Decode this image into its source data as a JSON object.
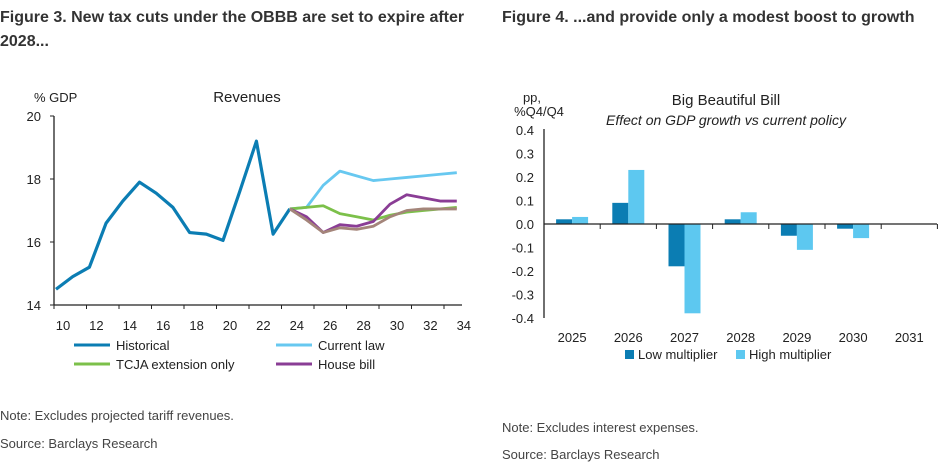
{
  "left": {
    "title": "Figure 3. New tax cuts under the OBBB are set to expire after 2028...",
    "note": "Note: Excludes projected tariff revenues.",
    "source": "Source: Barclays Research"
  },
  "right": {
    "title": "Figure 4. ...and provide only a modest boost to growth",
    "note": "Note: Excludes interest expenses.",
    "source": "Source: Barclays Research"
  },
  "chart_data": [
    {
      "type": "line",
      "title": "Revenues",
      "ylabel": "% GDP",
      "ylim": [
        14,
        20
      ],
      "yticks": [
        "14",
        "16",
        "18",
        "20"
      ],
      "xticks": [
        "10",
        "12",
        "14",
        "16",
        "18",
        "20",
        "22",
        "24",
        "26",
        "28",
        "30",
        "32",
        "34"
      ],
      "series": [
        {
          "name": "Historical",
          "color": "#0b7db3",
          "x": [
            10,
            11,
            12,
            13,
            14,
            15,
            16,
            17,
            18,
            19,
            20,
            21,
            22,
            23,
            24
          ],
          "values": [
            14.5,
            14.9,
            15.2,
            16.6,
            17.3,
            17.9,
            17.55,
            17.1,
            16.3,
            16.25,
            16.05,
            17.6,
            19.2,
            16.25,
            17.05
          ]
        },
        {
          "name": "Current law",
          "color": "#67c8f0",
          "x": [
            24,
            25,
            26,
            27,
            28,
            29,
            30,
            31,
            32,
            33,
            34
          ],
          "values": [
            17.05,
            17.1,
            17.8,
            18.25,
            18.1,
            17.95,
            18.0,
            18.05,
            18.1,
            18.15,
            18.2
          ]
        },
        {
          "name": "TCJA extension only",
          "color": "#7cc04a",
          "x": [
            24,
            25,
            26,
            27,
            28,
            29,
            30,
            31,
            32,
            33,
            34
          ],
          "values": [
            17.05,
            17.1,
            17.15,
            16.9,
            16.8,
            16.7,
            16.85,
            16.95,
            17.0,
            17.05,
            17.1
          ]
        },
        {
          "name": "House bill",
          "color": "#8a3d95",
          "x": [
            24,
            25,
            26,
            27,
            28,
            29,
            30,
            31,
            32,
            33,
            34
          ],
          "values": [
            17.05,
            16.8,
            16.3,
            16.55,
            16.5,
            16.65,
            17.2,
            17.5,
            17.4,
            17.3,
            17.3
          ]
        },
        {
          "name": "",
          "color": "#a4857a",
          "x": [
            24,
            25,
            26,
            27,
            28,
            29,
            30,
            31,
            32,
            33,
            34
          ],
          "values": [
            17.05,
            16.7,
            16.3,
            16.45,
            16.4,
            16.5,
            16.8,
            17.0,
            17.05,
            17.05,
            17.05
          ]
        }
      ]
    },
    {
      "type": "bar",
      "title": "Big Beautiful Bill",
      "subtitle": "Effect on GDP growth vs current policy",
      "ylabel": [
        "pp,",
        "%Q4/Q4"
      ],
      "ylim": [
        -0.4,
        0.4
      ],
      "yticks": [
        "-0.4",
        "-0.3",
        "-0.2",
        "-0.1",
        "0.0",
        "0.1",
        "0.2",
        "0.3",
        "0.4"
      ],
      "categories": [
        "2025",
        "2026",
        "2027",
        "2028",
        "2029",
        "2030",
        "2031"
      ],
      "series": [
        {
          "name": "Low multiplier",
          "color": "#0b7db3",
          "values": [
            0.02,
            0.09,
            -0.18,
            0.02,
            -0.05,
            -0.02,
            0
          ]
        },
        {
          "name": "High multiplier",
          "color": "#5dc8f0",
          "values": [
            0.03,
            0.23,
            -0.38,
            0.05,
            -0.11,
            -0.06,
            0
          ]
        }
      ]
    }
  ]
}
